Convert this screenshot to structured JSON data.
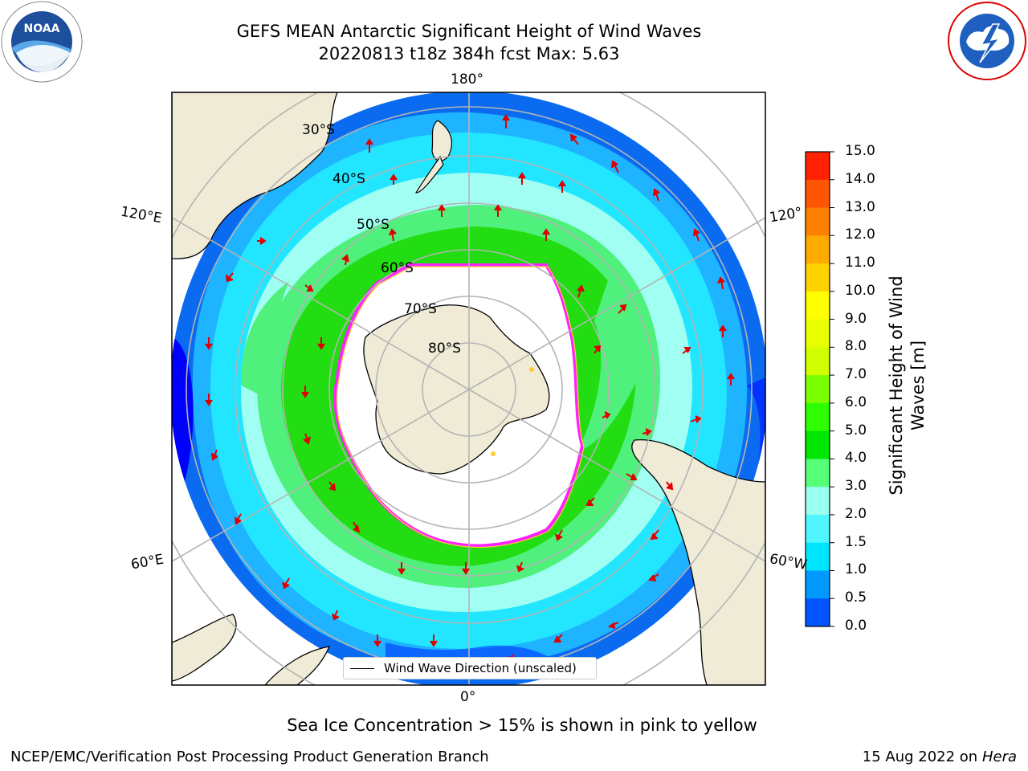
{
  "title": {
    "line1": "GEFS MEAN Antarctic Significant Height of Wind Waves",
    "line2": "20220813 t18z 384h fcst   Max: 5.63"
  },
  "map": {
    "meridian_labels": {
      "top": "180°",
      "bottom": "0°",
      "left_upper": "120°E",
      "left_lower": "60°E",
      "right_upper": "120°",
      "right_lower": "60°W"
    },
    "latitude_labels": [
      "30°S",
      "40°S",
      "50°S",
      "60°S",
      "70°S",
      "80°S"
    ],
    "legend": {
      "label": "Wind Wave Direction (unscaled)"
    },
    "ice_note": "Sea Ice Concentration > 15% is shown in pink to yellow",
    "colors": {
      "land": "#efebd7",
      "ice_edge": "#ff00ff",
      "arrow": "#ff0000"
    }
  },
  "colorbar": {
    "label": "Significant Height of Wind Waves [m]",
    "label_line1": "Significant Height of Wind",
    "label_line2": "Waves [m]",
    "ticks": [
      "15.0",
      "14.0",
      "13.0",
      "12.0",
      "11.0",
      "10.0",
      "9.0",
      "8.0",
      "7.0",
      "6.0",
      "5.0",
      "4.0",
      "3.0",
      "2.0",
      "1.5",
      "1.0",
      "0.5",
      "0.0"
    ],
    "colors_top_to_bottom": [
      "#ff0000",
      "#ff2200",
      "#ff5500",
      "#ff8000",
      "#ffaa00",
      "#ffd200",
      "#ffff00",
      "#e9ff00",
      "#d2ff00",
      "#7cff00",
      "#2eff00",
      "#00e600",
      "#55ff77",
      "#99fff0",
      "#4ff5ff",
      "#00e5ff",
      "#0099ff",
      "#0055ff",
      "#0000ff"
    ]
  },
  "footer": {
    "left": "NCEP/EMC/Verification Post Processing Product Generation Branch",
    "right_date": "15 Aug 2022 on",
    "right_host": "Hera"
  },
  "logos": {
    "left": "NOAA",
    "right": "NATIONAL WEATHER SERVICE"
  }
}
